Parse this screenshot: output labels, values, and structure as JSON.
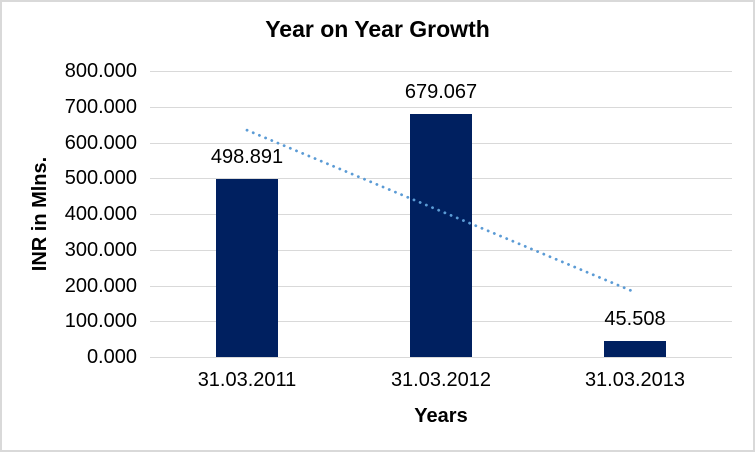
{
  "chart_data": {
    "type": "bar",
    "title": "Year on Year Growth",
    "xlabel": "Years",
    "ylabel": "INR in Mlns.",
    "categories": [
      "31.03.2011",
      "31.03.2012",
      "31.03.2013"
    ],
    "values": [
      498.891,
      679.067,
      45.508
    ],
    "data_labels": [
      "498.891",
      "679.067",
      "45.508"
    ],
    "ylim": [
      0,
      800
    ],
    "ytick_labels": [
      "0.000",
      "100.000",
      "200.000",
      "300.000",
      "400.000",
      "500.000",
      "600.000",
      "700.000",
      "800.000"
    ],
    "grid": true,
    "legend": "none",
    "trendline": {
      "type": "linear",
      "style": "dotted",
      "start_value": 634.51,
      "end_value": 181.13
    },
    "colors": {
      "bar": "#002060",
      "trendline": "#5b9bd5",
      "gridline": "#d9d9d9",
      "text": "#000000",
      "border": "#d9d9d9",
      "background": "#ffffff"
    }
  }
}
